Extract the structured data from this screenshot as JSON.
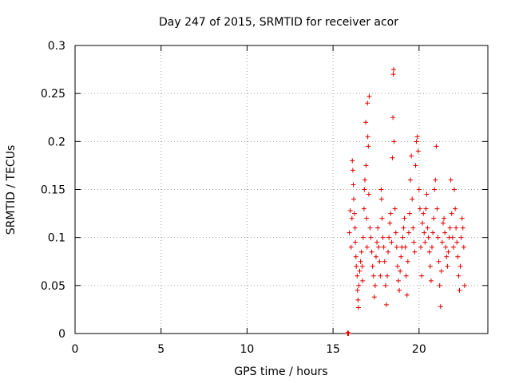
{
  "chart_data": {
    "type": "scatter",
    "title": "Day 247 of 2015, SRMTID for receiver acor",
    "xlabel": "GPS time / hours",
    "ylabel": "SRMTID / TECUs",
    "xlim": [
      0,
      24
    ],
    "ylim": [
      0,
      0.3
    ],
    "xticks": [
      0,
      5,
      10,
      15,
      20
    ],
    "xtick_labels": [
      "0",
      "5",
      "10",
      "15",
      "20"
    ],
    "yticks": [
      0,
      0.05,
      0.1,
      0.15,
      0.2,
      0.25,
      0.3
    ],
    "ytick_labels": [
      "0",
      "0.05",
      "0.1",
      "0.15",
      "0.2",
      "0.25",
      "0.3"
    ],
    "grid": true,
    "marker": "+",
    "color": "#e00000",
    "series": [
      {
        "name": "SRMTID",
        "points": [
          [
            15.85,
            0.0
          ],
          [
            15.87,
            0.001
          ],
          [
            15.9,
            0.0
          ],
          [
            15.95,
            0.105
          ],
          [
            16.0,
            0.128
          ],
          [
            16.05,
            0.09
          ],
          [
            16.1,
            0.12
          ],
          [
            16.12,
            0.18
          ],
          [
            16.15,
            0.17
          ],
          [
            16.18,
            0.155
          ],
          [
            16.2,
            0.14
          ],
          [
            16.25,
            0.125
          ],
          [
            16.28,
            0.11
          ],
          [
            16.3,
            0.095
          ],
          [
            16.33,
            0.08
          ],
          [
            16.35,
            0.07
          ],
          [
            16.4,
            0.06
          ],
          [
            16.42,
            0.045
          ],
          [
            16.45,
            0.035
          ],
          [
            16.48,
            0.027
          ],
          [
            16.5,
            0.05
          ],
          [
            16.55,
            0.065
          ],
          [
            16.6,
            0.075
          ],
          [
            16.65,
            0.085
          ],
          [
            16.7,
            0.07
          ],
          [
            16.72,
            0.055
          ],
          [
            16.75,
            0.1
          ],
          [
            16.8,
            0.13
          ],
          [
            16.82,
            0.15
          ],
          [
            16.85,
            0.16
          ],
          [
            16.9,
            0.22
          ],
          [
            16.92,
            0.175
          ],
          [
            16.95,
            0.12
          ],
          [
            16.98,
            0.09
          ],
          [
            17.0,
            0.24
          ],
          [
            17.02,
            0.205
          ],
          [
            17.05,
            0.195
          ],
          [
            17.08,
            0.145
          ],
          [
            17.1,
            0.247
          ],
          [
            17.15,
            0.11
          ],
          [
            17.2,
            0.1
          ],
          [
            17.25,
            0.085
          ],
          [
            17.3,
            0.07
          ],
          [
            17.35,
            0.06
          ],
          [
            17.4,
            0.038
          ],
          [
            17.45,
            0.05
          ],
          [
            17.5,
            0.08
          ],
          [
            17.55,
            0.095
          ],
          [
            17.6,
            0.11
          ],
          [
            17.65,
            0.09
          ],
          [
            17.7,
            0.075
          ],
          [
            17.75,
            0.06
          ],
          [
            17.8,
            0.15
          ],
          [
            17.82,
            0.14
          ],
          [
            17.85,
            0.12
          ],
          [
            17.9,
            0.1
          ],
          [
            17.95,
            0.09
          ],
          [
            18.0,
            0.075
          ],
          [
            18.05,
            0.05
          ],
          [
            18.1,
            0.03
          ],
          [
            18.15,
            0.06
          ],
          [
            18.2,
            0.085
          ],
          [
            18.25,
            0.1
          ],
          [
            18.3,
            0.115
          ],
          [
            18.35,
            0.125
          ],
          [
            18.4,
            0.095
          ],
          [
            18.45,
            0.183
          ],
          [
            18.48,
            0.225
          ],
          [
            18.5,
            0.27
          ],
          [
            18.52,
            0.275
          ],
          [
            18.55,
            0.2
          ],
          [
            18.6,
            0.13
          ],
          [
            18.65,
            0.105
          ],
          [
            18.7,
            0.09
          ],
          [
            18.75,
            0.07
          ],
          [
            18.8,
            0.055
          ],
          [
            18.85,
            0.045
          ],
          [
            18.9,
            0.065
          ],
          [
            18.95,
            0.08
          ],
          [
            19.0,
            0.09
          ],
          [
            19.05,
            0.1
          ],
          [
            19.1,
            0.11
          ],
          [
            19.15,
            0.12
          ],
          [
            19.2,
            0.09
          ],
          [
            19.25,
            0.06
          ],
          [
            19.3,
            0.04
          ],
          [
            19.35,
            0.075
          ],
          [
            19.4,
            0.105
          ],
          [
            19.45,
            0.125
          ],
          [
            19.5,
            0.16
          ],
          [
            19.55,
            0.185
          ],
          [
            19.6,
            0.14
          ],
          [
            19.65,
            0.11
          ],
          [
            19.7,
            0.095
          ],
          [
            19.75,
            0.085
          ],
          [
            19.8,
            0.175
          ],
          [
            19.85,
            0.2
          ],
          [
            19.9,
            0.205
          ],
          [
            19.95,
            0.19
          ],
          [
            20.0,
            0.15
          ],
          [
            20.05,
            0.13
          ],
          [
            20.1,
            0.09
          ],
          [
            20.15,
            0.06
          ],
          [
            20.2,
            0.115
          ],
          [
            20.25,
            0.125
          ],
          [
            20.3,
            0.105
          ],
          [
            20.35,
            0.095
          ],
          [
            20.4,
            0.13
          ],
          [
            20.45,
            0.145
          ],
          [
            20.5,
            0.11
          ],
          [
            20.55,
            0.1
          ],
          [
            20.6,
            0.085
          ],
          [
            20.65,
            0.07
          ],
          [
            20.7,
            0.055
          ],
          [
            20.75,
            0.09
          ],
          [
            20.8,
            0.105
          ],
          [
            20.85,
            0.12
          ],
          [
            20.9,
            0.15
          ],
          [
            20.95,
            0.16
          ],
          [
            21.0,
            0.195
          ],
          [
            21.05,
            0.13
          ],
          [
            21.1,
            0.1
          ],
          [
            21.15,
            0.075
          ],
          [
            21.2,
            0.05
          ],
          [
            21.25,
            0.028
          ],
          [
            21.3,
            0.065
          ],
          [
            21.35,
            0.095
          ],
          [
            21.4,
            0.115
          ],
          [
            21.45,
            0.12
          ],
          [
            21.5,
            0.105
          ],
          [
            21.55,
            0.09
          ],
          [
            21.6,
            0.08
          ],
          [
            21.65,
            0.07
          ],
          [
            21.7,
            0.085
          ],
          [
            21.75,
            0.1
          ],
          [
            21.8,
            0.11
          ],
          [
            21.85,
            0.16
          ],
          [
            21.9,
            0.125
          ],
          [
            21.95,
            0.1
          ],
          [
            22.0,
            0.09
          ],
          [
            22.05,
            0.15
          ],
          [
            22.1,
            0.13
          ],
          [
            22.15,
            0.11
          ],
          [
            22.2,
            0.095
          ],
          [
            22.25,
            0.08
          ],
          [
            22.3,
            0.06
          ],
          [
            22.35,
            0.045
          ],
          [
            22.4,
            0.07
          ],
          [
            22.45,
            0.1
          ],
          [
            22.5,
            0.12
          ],
          [
            22.55,
            0.11
          ],
          [
            22.6,
            0.09
          ],
          [
            22.65,
            0.05
          ]
        ]
      }
    ]
  }
}
